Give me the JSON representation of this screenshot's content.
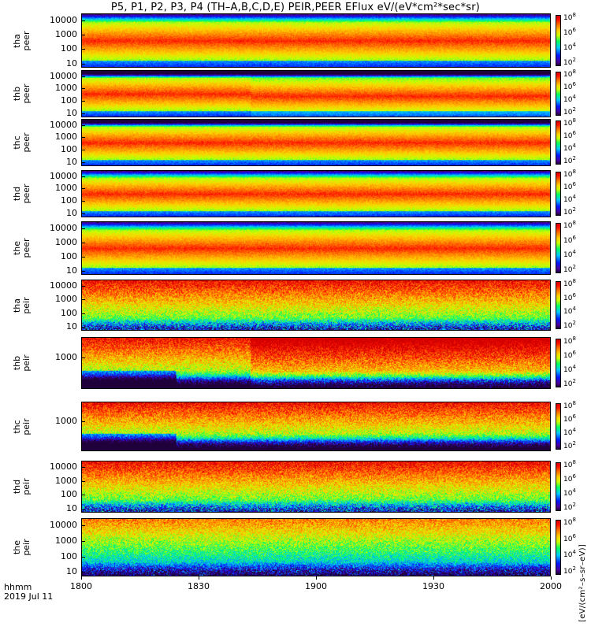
{
  "title": "P5, P1, P2, P3, P4 (TH–A,B,C,D,E) PEIR,PEER EFlux eV/(eV*cm²*sec*sr)",
  "colorbar_units": "[eV/(cm²–s–sr–eV)]",
  "x_axis": {
    "label_line1": "hhmm",
    "label_line2": "2019 Jul 11",
    "ticks": [
      "1800",
      "1830",
      "1900",
      "1930",
      "2000"
    ]
  },
  "colors": {
    "background": "#ffffff",
    "colormap": [
      "#20003a",
      "#4a00a0",
      "#0018ff",
      "#00c8ff",
      "#00ff60",
      "#c8ff00",
      "#ffd000",
      "#ff7000",
      "#ff1000",
      "#d00000"
    ]
  },
  "chart_data": [
    {
      "type": "heatmap",
      "ylabel": "tha peer",
      "yscale": "log",
      "ytick_labels": [
        "10000",
        "1000",
        "100",
        "10"
      ],
      "ylim": [
        5,
        30000
      ],
      "xlim": [
        "18:00",
        "20:00"
      ],
      "colorbar_ticks": [
        "10^8",
        "10^6",
        "10^4",
        "10^2"
      ]
    },
    {
      "type": "heatmap",
      "ylabel": "thb peer",
      "yscale": "log",
      "ytick_labels": [
        "10000",
        "1000",
        "100",
        "10"
      ],
      "ylim": [
        5,
        30000
      ],
      "xlim": [
        "18:00",
        "20:00"
      ],
      "colorbar_ticks": [
        "10^8",
        "10^6",
        "10^4",
        "10^2"
      ]
    },
    {
      "type": "heatmap",
      "ylabel": "thc peer",
      "yscale": "log",
      "ytick_labels": [
        "10000",
        "1000",
        "100",
        "10"
      ],
      "ylim": [
        5,
        30000
      ],
      "xlim": [
        "18:00",
        "20:00"
      ],
      "colorbar_ticks": [
        "10^8",
        "10^6",
        "10^4",
        "10^2"
      ]
    },
    {
      "type": "heatmap",
      "ylabel": "thd peer",
      "yscale": "log",
      "ytick_labels": [
        "10000",
        "1000",
        "100",
        "10"
      ],
      "ylim": [
        5,
        30000
      ],
      "xlim": [
        "18:00",
        "20:00"
      ],
      "colorbar_ticks": [
        "10^8",
        "10^6",
        "10^4",
        "10^2"
      ]
    },
    {
      "type": "heatmap",
      "ylabel": "the peer",
      "yscale": "log",
      "ytick_labels": [
        "10000",
        "1000",
        "100",
        "10"
      ],
      "ylim": [
        5,
        30000
      ],
      "xlim": [
        "18:00",
        "20:00"
      ],
      "colorbar_ticks": [
        "10^8",
        "10^6",
        "10^4",
        "10^2"
      ]
    },
    {
      "type": "heatmap",
      "ylabel": "tha peir",
      "yscale": "log",
      "ytick_labels": [
        "10000",
        "1000",
        "100",
        "10"
      ],
      "ylim": [
        5,
        30000
      ],
      "xlim": [
        "18:00",
        "20:00"
      ],
      "colorbar_ticks": [
        "10^8",
        "10^6",
        "10^4",
        "10^2"
      ]
    },
    {
      "type": "heatmap",
      "ylabel": "thb peir",
      "yscale": "log",
      "ytick_labels": [
        "1000"
      ],
      "ylim": [
        5,
        30000
      ],
      "xlim": [
        "18:00",
        "20:00"
      ],
      "colorbar_ticks": [
        "10^8",
        "10^6",
        "10^4",
        "10^2"
      ]
    },
    {
      "type": "heatmap",
      "ylabel": "thc peir",
      "yscale": "log",
      "ytick_labels": [
        "1000"
      ],
      "ylim": [
        5,
        30000
      ],
      "xlim": [
        "18:00",
        "20:00"
      ],
      "colorbar_ticks": [
        "10^8",
        "10^6",
        "10^4",
        "10^2"
      ]
    },
    {
      "type": "heatmap",
      "ylabel": "thd peir",
      "yscale": "log",
      "ytick_labels": [
        "10000",
        "1000",
        "100",
        "10"
      ],
      "ylim": [
        5,
        30000
      ],
      "xlim": [
        "18:00",
        "20:00"
      ],
      "colorbar_ticks": [
        "10^8",
        "10^6",
        "10^4",
        "10^2"
      ]
    },
    {
      "type": "heatmap",
      "ylabel": "the peir",
      "yscale": "log",
      "ytick_labels": [
        "10000",
        "1000",
        "100",
        "10"
      ],
      "ylim": [
        5,
        30000
      ],
      "xlim": [
        "18:00",
        "20:00"
      ],
      "colorbar_ticks": [
        "10^8",
        "10^6",
        "10^4",
        "10^2"
      ]
    }
  ]
}
